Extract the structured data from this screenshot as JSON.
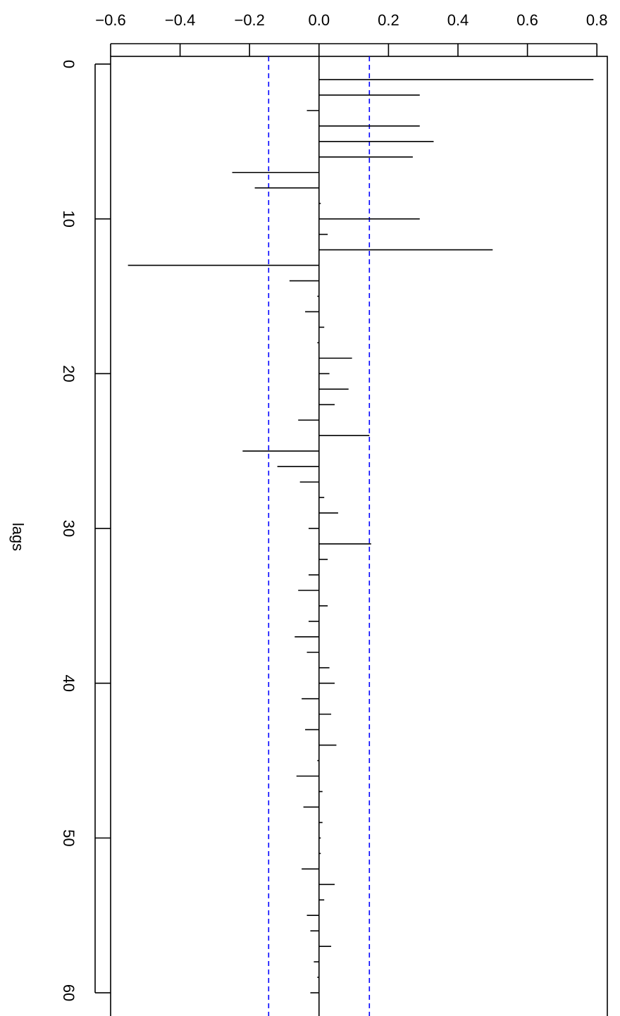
{
  "chart_data": {
    "type": "bar",
    "orientation": "rotated",
    "title": "",
    "xlabel": "lags",
    "ylabel": "",
    "x": [
      1,
      2,
      3,
      4,
      5,
      6,
      7,
      8,
      9,
      10,
      11,
      12,
      13,
      14,
      15,
      16,
      17,
      18,
      19,
      20,
      21,
      22,
      23,
      24,
      25,
      26,
      27,
      28,
      29,
      30,
      31,
      32,
      33,
      34,
      35,
      36,
      37,
      38,
      39,
      40,
      41,
      42,
      43,
      44,
      45,
      46,
      47,
      48,
      49,
      50,
      51,
      52,
      53,
      54,
      55,
      56,
      57,
      58,
      59,
      60
    ],
    "values": [
      0.79,
      0.29,
      -0.035,
      0.29,
      0.33,
      0.27,
      -0.25,
      -0.185,
      0.005,
      0.29,
      0.025,
      0.5,
      -0.55,
      -0.085,
      -0.005,
      -0.04,
      0.015,
      -0.005,
      0.095,
      0.03,
      0.085,
      0.045,
      -0.06,
      0.145,
      -0.22,
      -0.12,
      -0.055,
      0.015,
      0.055,
      -0.03,
      0.15,
      0.025,
      -0.03,
      -0.06,
      0.025,
      -0.03,
      -0.07,
      -0.035,
      0.03,
      0.045,
      -0.05,
      0.035,
      -0.04,
      0.05,
      -0.005,
      -0.065,
      0.01,
      -0.045,
      0.01,
      0.005,
      0.005,
      -0.05,
      0.045,
      0.015,
      -0.035,
      -0.025,
      0.035,
      -0.015,
      -0.005,
      -0.025
    ],
    "ci": [
      -0.145,
      0.145
    ],
    "x_ticks": [
      0,
      10,
      20,
      30,
      40,
      50,
      60
    ],
    "x_tick_labels": [
      "0",
      "10",
      "20",
      "30",
      "40",
      "50",
      "60"
    ],
    "xlim": [
      -0.5,
      61.5
    ],
    "y_ticks": [
      -0.6,
      -0.4,
      -0.2,
      0.0,
      0.2,
      0.4,
      0.6,
      0.8
    ],
    "y_tick_labels": [
      "−0.6",
      "−0.4",
      "−0.2",
      "0.0",
      "0.2",
      "0.4",
      "0.6",
      "0.8"
    ],
    "ylim": [
      -0.6,
      0.83
    ],
    "grid": false,
    "legend": "none",
    "colors": {
      "spikes": "#000000",
      "ci": "#0000ff"
    }
  }
}
